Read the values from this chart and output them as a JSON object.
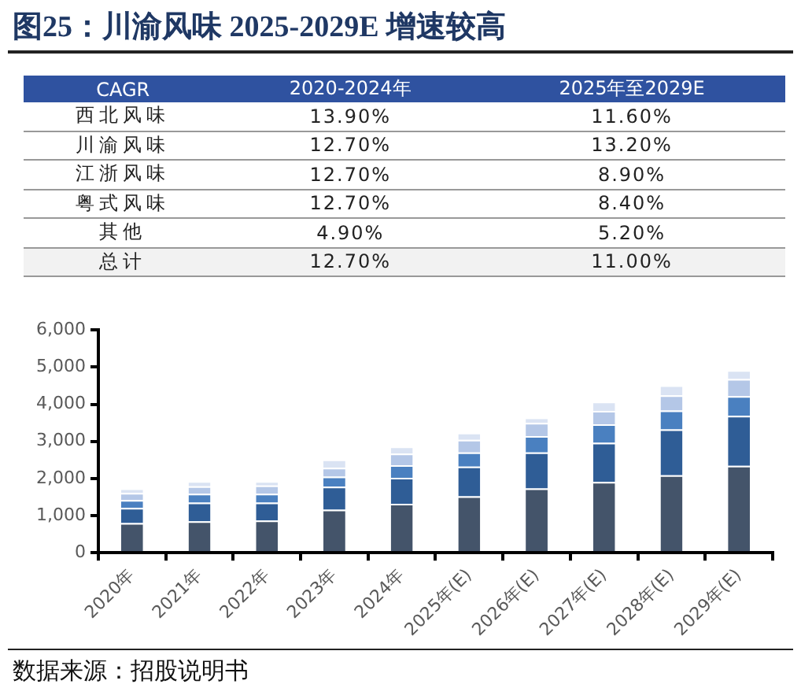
{
  "chart_data": [
    {
      "type": "other",
      "title": "图25：川渝风味 2025-2029E 增速较高",
      "categories": [
        "CAGR",
        "2020-2024年",
        "2025年至2029E"
      ],
      "y_categories": [
        "西北风味",
        "川渝风味",
        "江浙风味",
        "粤式风味",
        "其他",
        "总计"
      ],
      "cell_labels": [
        [
          "13.90%",
          "11.60%"
        ],
        [
          "12.70%",
          "13.20%"
        ],
        [
          "12.70%",
          "8.90%"
        ],
        [
          "12.70%",
          "8.40%"
        ],
        [
          "4.90%",
          "5.20%"
        ],
        [
          "12.70%",
          "11.00%"
        ]
      ]
    },
    {
      "type": "bar",
      "stacked": true,
      "categories": [
        "2020年",
        "2021年",
        "2022年",
        "2023年",
        "2024年",
        "2025年(E)",
        "2026年(E)",
        "2027年(E)",
        "2028年(E)",
        "2029年(E)"
      ],
      "series": [
        {
          "color": "#44546a",
          "values": [
            800,
            850,
            870,
            1160,
            1320,
            1520,
            1730,
            1910,
            2090,
            2340
          ]
        },
        {
          "color": "#2f5d96",
          "values": [
            410,
            500,
            480,
            620,
            700,
            800,
            970,
            1050,
            1230,
            1350
          ]
        },
        {
          "color": "#4a80c0",
          "values": [
            210,
            240,
            240,
            270,
            340,
            380,
            440,
            500,
            510,
            530
          ]
        },
        {
          "color": "#b4c7e7",
          "values": [
            190,
            200,
            220,
            240,
            310,
            340,
            360,
            360,
            410,
            460
          ]
        },
        {
          "color": "#dae3f3",
          "values": [
            120,
            140,
            120,
            220,
            190,
            190,
            140,
            250,
            270,
            240
          ]
        }
      ],
      "ylim": [
        0,
        6000
      ],
      "yticks": [
        0,
        {
          "value": 1000,
          "label": "1,000"
        },
        {
          "value": 2000,
          "label": "2,000"
        },
        {
          "value": 3000,
          "label": "3,000"
        },
        {
          "value": 4000,
          "label": "4,000"
        },
        {
          "value": 5000,
          "label": "5,000"
        },
        {
          "value": 6000,
          "label": "6,000"
        }
      ],
      "grid": false,
      "legend": false,
      "annotations": [
        "数据来源：招股说明书"
      ]
    }
  ]
}
